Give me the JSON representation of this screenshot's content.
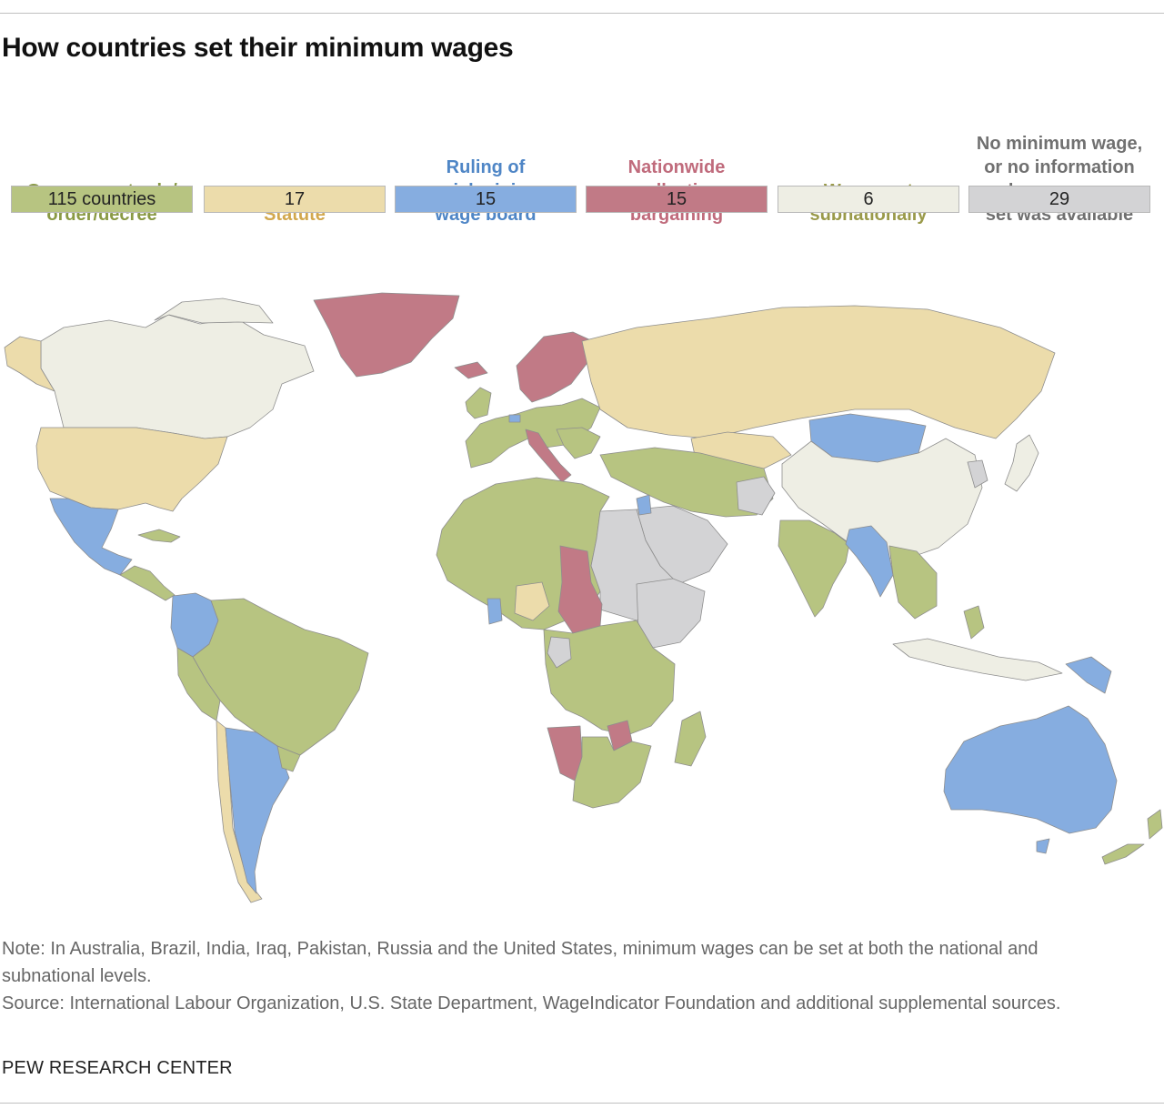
{
  "title": "How countries set their minimum wages",
  "legend": [
    {
      "label": "Government rule/\norder/decree",
      "value": "115 countries",
      "color": "#b7c481",
      "text_color": "#8a9a45"
    },
    {
      "label": "Statute",
      "value": "17",
      "color": "#ecdcab",
      "text_color": "#d2a84e"
    },
    {
      "label": "Ruling of\nspecial minimum\nwage board",
      "value": "15",
      "color": "#86ade0",
      "text_color": "#4f86c6"
    },
    {
      "label": "Nationwide\ncollective\nbargaining",
      "value": "15",
      "color": "#c17a86",
      "text_color": "#c06b7c"
    },
    {
      "label": "Wages set\nsubnationally",
      "value": "6",
      "color": "#eeeee4",
      "text_color": "#9a9a4a"
    },
    {
      "label": "No minimum wage,\nor no information\non how wages are\nset was available",
      "value": "29",
      "color": "#d3d3d5",
      "text_color": "#707070"
    }
  ],
  "note": "Note: In Australia, Brazil, India, Iraq, Pakistan, Russia and the United States, minimum wages can be set at both the national and subnational levels.",
  "source": "Source: International Labour Organization, U.S. State Department, WageIndicator Foundation and additional supplemental sources.",
  "brand": "PEW RESEARCH CENTER"
}
